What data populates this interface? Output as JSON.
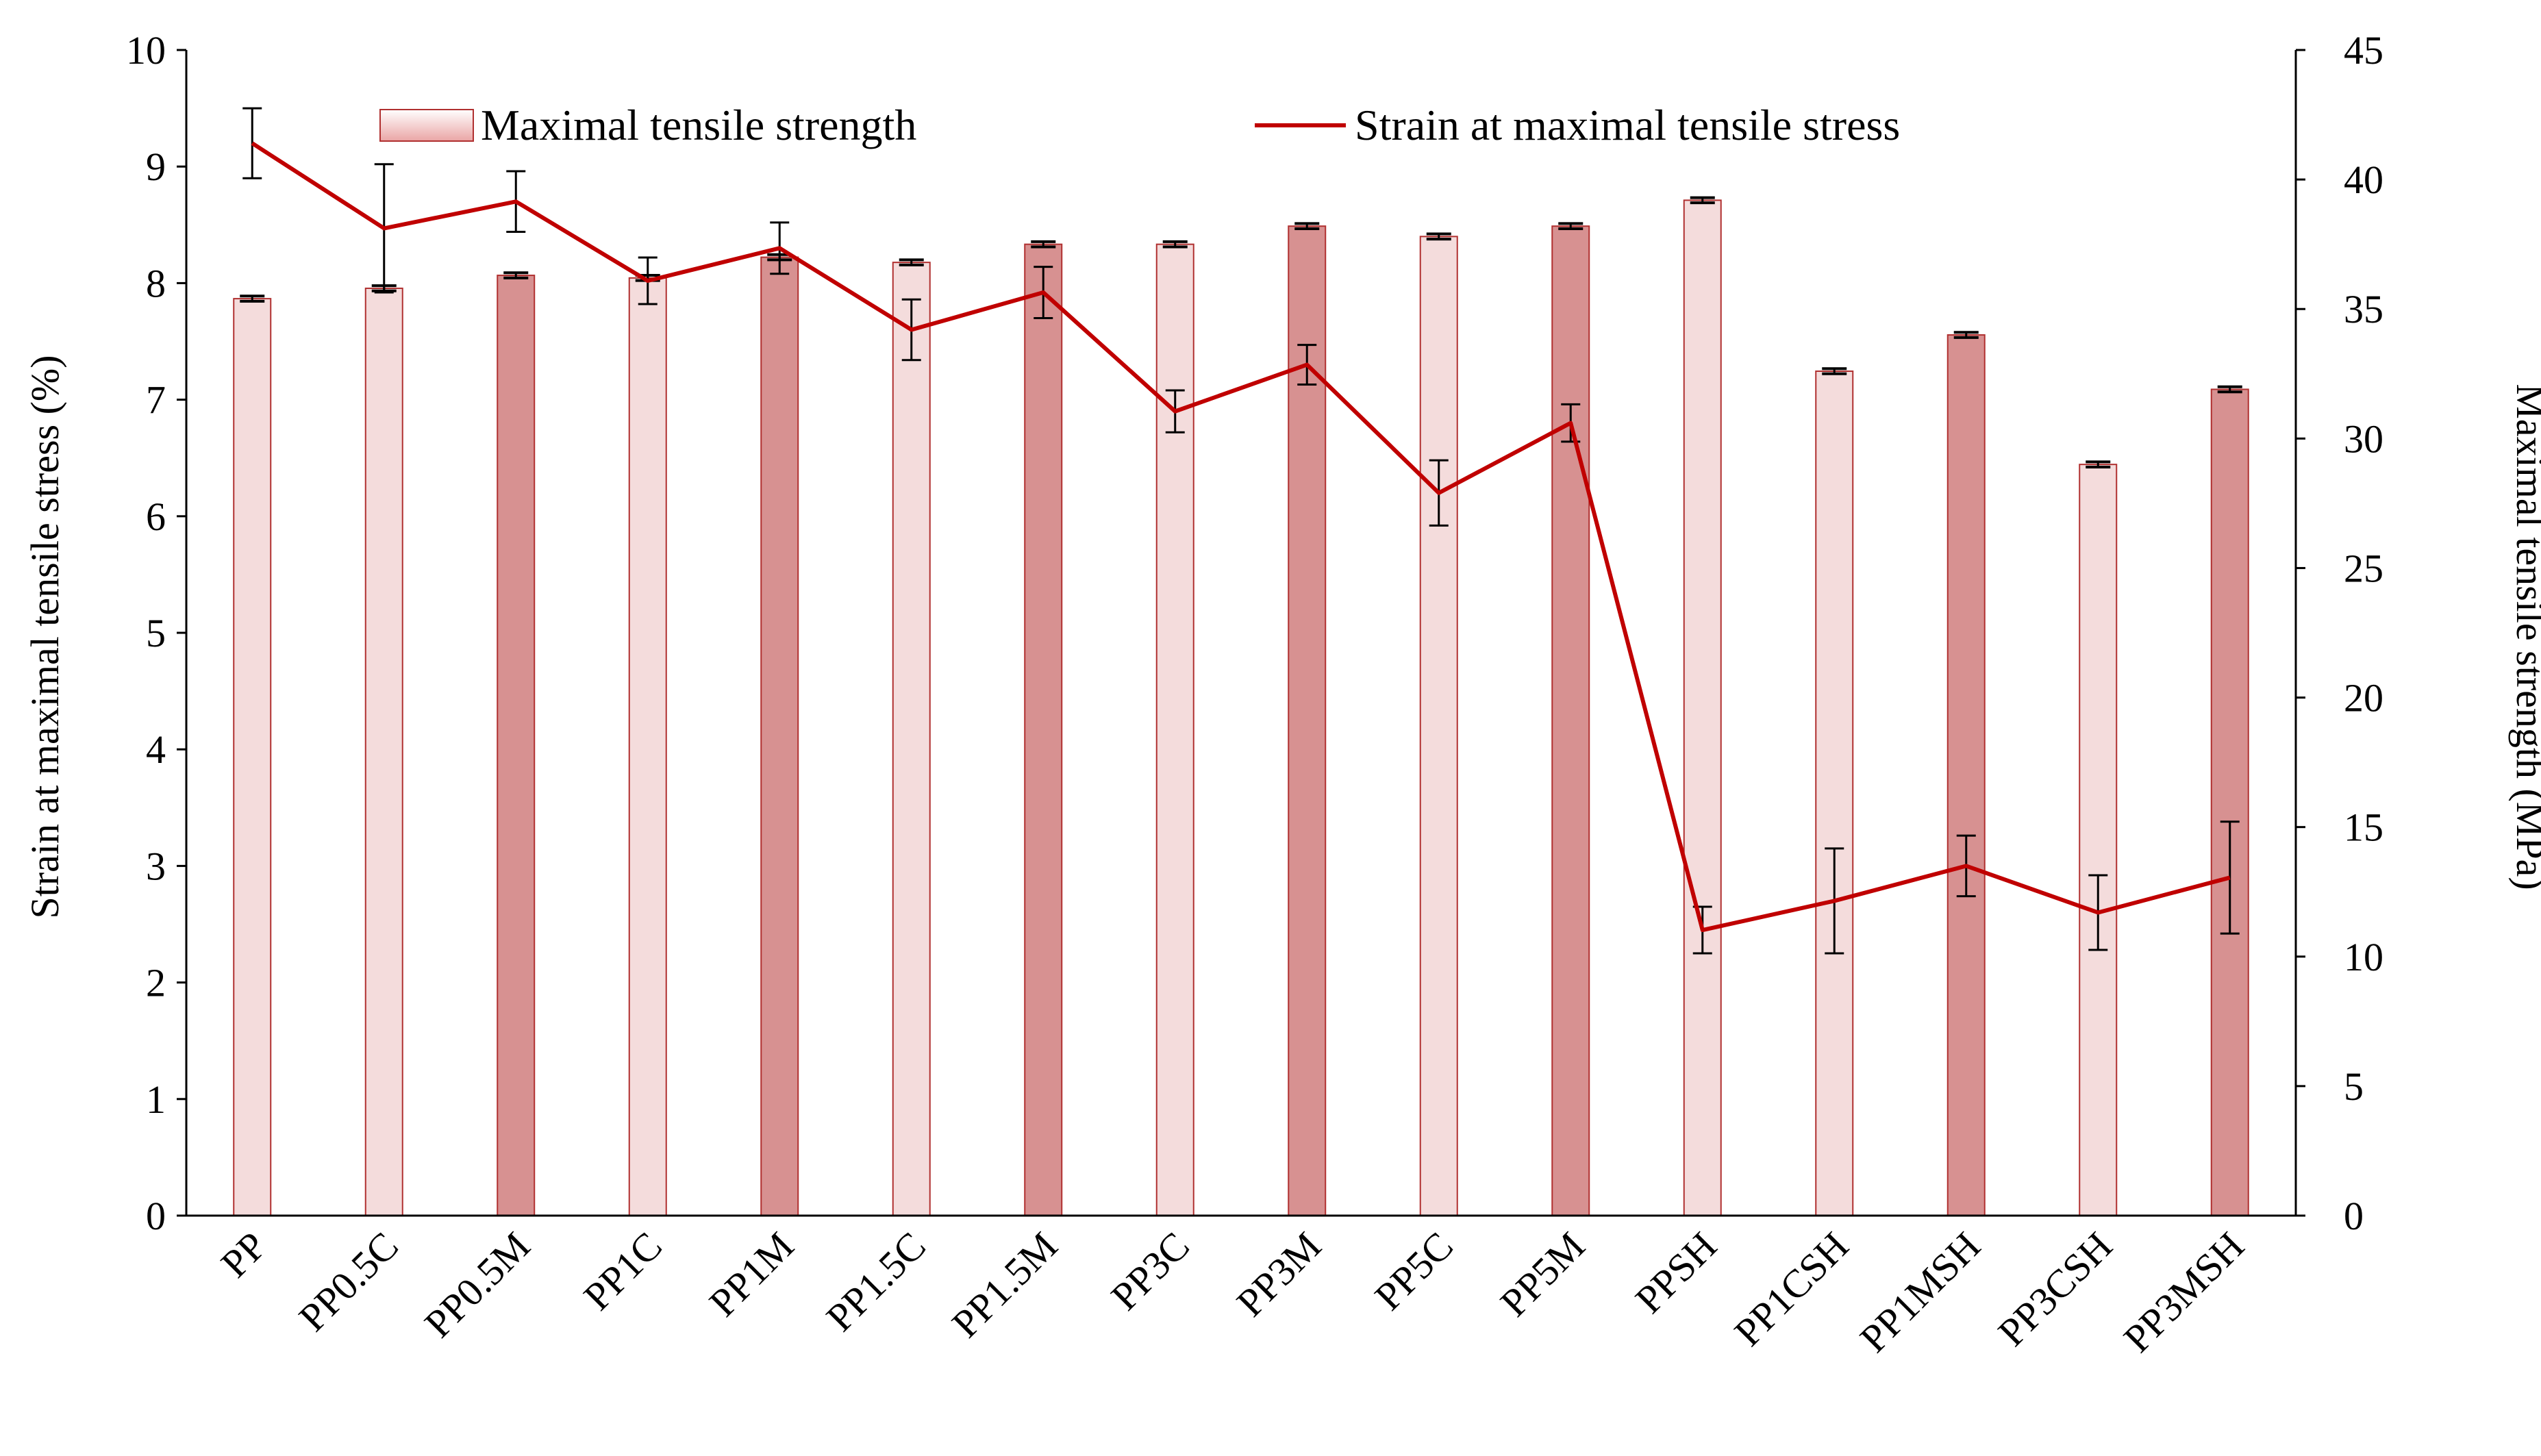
{
  "chart_data": {
    "type": "bar+line",
    "categories": [
      "PP",
      "PP0.5C",
      "PP0.5M",
      "PP1C",
      "PP1M",
      "PP1.5C",
      "PP1.5M",
      "PP3C",
      "PP3M",
      "PP5C",
      "PP5M",
      "PPSH",
      "PP1CSH",
      "PP1MSH",
      "PP3CSH",
      "PP3MSH"
    ],
    "bar_series": {
      "name": "Maximal tensile strength",
      "axis": "right",
      "values": [
        35.4,
        35.8,
        36.3,
        36.2,
        37.0,
        36.8,
        37.5,
        37.5,
        38.2,
        37.8,
        38.2,
        39.2,
        32.6,
        34.0,
        29.0,
        31.9
      ],
      "error": [
        0.1,
        0.1,
        0.1,
        0.1,
        0.1,
        0.1,
        0.1,
        0.1,
        0.1,
        0.1,
        0.1,
        0.1,
        0.1,
        0.1,
        0.1,
        0.1
      ],
      "colors": [
        "#f4dcdc",
        "#f4dcdc",
        "#d79191",
        "#f4dcdc",
        "#d79191",
        "#f4dcdc",
        "#d79191",
        "#f4dcdc",
        "#d79191",
        "#f4dcdc",
        "#d79191",
        "#f4dcdc",
        "#f4dcdc",
        "#d79191",
        "#f4dcdc",
        "#d79191"
      ]
    },
    "line_series": {
      "name": "Strain at maximal tensile stress",
      "axis": "left",
      "values": [
        9.2,
        8.47,
        8.7,
        8.02,
        8.3,
        7.6,
        7.92,
        6.9,
        7.3,
        6.2,
        6.8,
        2.45,
        2.7,
        3.0,
        2.6,
        2.9
      ],
      "error": [
        0.3,
        0.55,
        0.26,
        0.2,
        0.22,
        0.26,
        0.22,
        0.18,
        0.17,
        0.28,
        0.16,
        0.2,
        0.45,
        0.26,
        0.32,
        0.48
      ],
      "color": "#c00000"
    },
    "y_left": {
      "label": "Strain at maximal tensile stress (%)",
      "min": 0,
      "max": 10,
      "ticks": [
        "0",
        "1",
        "2",
        "3",
        "4",
        "5",
        "6",
        "7",
        "8",
        "9",
        "10"
      ]
    },
    "y_right": {
      "label": "Maximal tensile strength (MPa)",
      "min": 0,
      "max": 45,
      "ticks": [
        "0",
        "5",
        "10",
        "15",
        "20",
        "25",
        "30",
        "35",
        "40",
        "45"
      ]
    },
    "legend_placement": "top",
    "colors": {
      "bar_light": "#f4dcdc",
      "bar_dark": "#d79191",
      "bar_edge": "#b03030",
      "line": "#c00000"
    }
  }
}
